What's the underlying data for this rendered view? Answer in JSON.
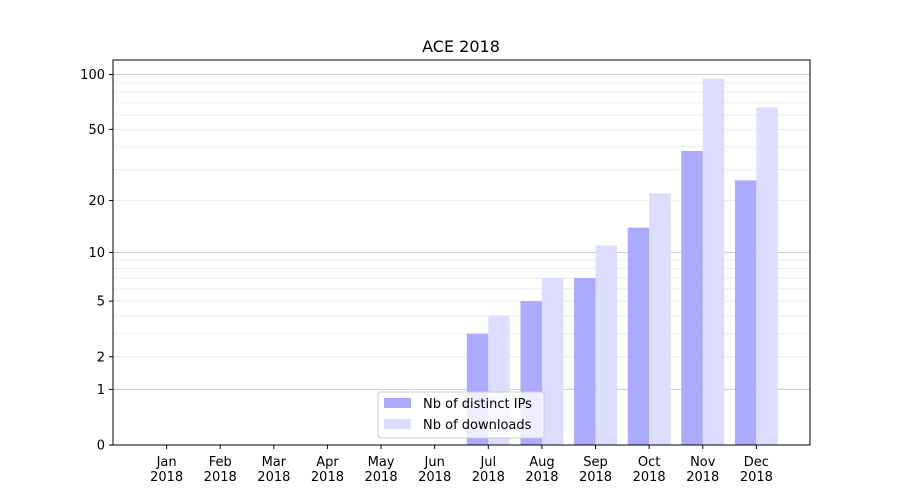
{
  "chart_data": {
    "type": "bar",
    "title": "ACE 2018",
    "xlabel": "",
    "ylabel": "",
    "yscale": "symlog (log10(1+y))",
    "ylim": [
      0,
      120
    ],
    "xlim": [
      -1,
      12
    ],
    "grid": true,
    "legend_position": "lower-center",
    "categories": [
      "Jan\n2018",
      "Feb\n2018",
      "Mar\n2018",
      "Apr\n2018",
      "May\n2018",
      "Jun\n2018",
      "Jul\n2018",
      "Aug\n2018",
      "Sep\n2018",
      "Oct\n2018",
      "Nov\n2018",
      "Dec\n2018"
    ],
    "yticks": [
      0,
      1,
      2,
      5,
      10,
      20,
      50,
      100
    ],
    "series": [
      {
        "name": "Nb of distinct IPs",
        "color": "#aaaaff",
        "values": [
          0,
          0,
          0,
          0,
          0,
          0,
          3,
          5,
          7,
          14,
          38,
          26
        ]
      },
      {
        "name": "Nb of downloads",
        "color": "#ddddff",
        "values": [
          0,
          0,
          0,
          0,
          0,
          0,
          4,
          7,
          11,
          22,
          95,
          66
        ]
      }
    ]
  }
}
